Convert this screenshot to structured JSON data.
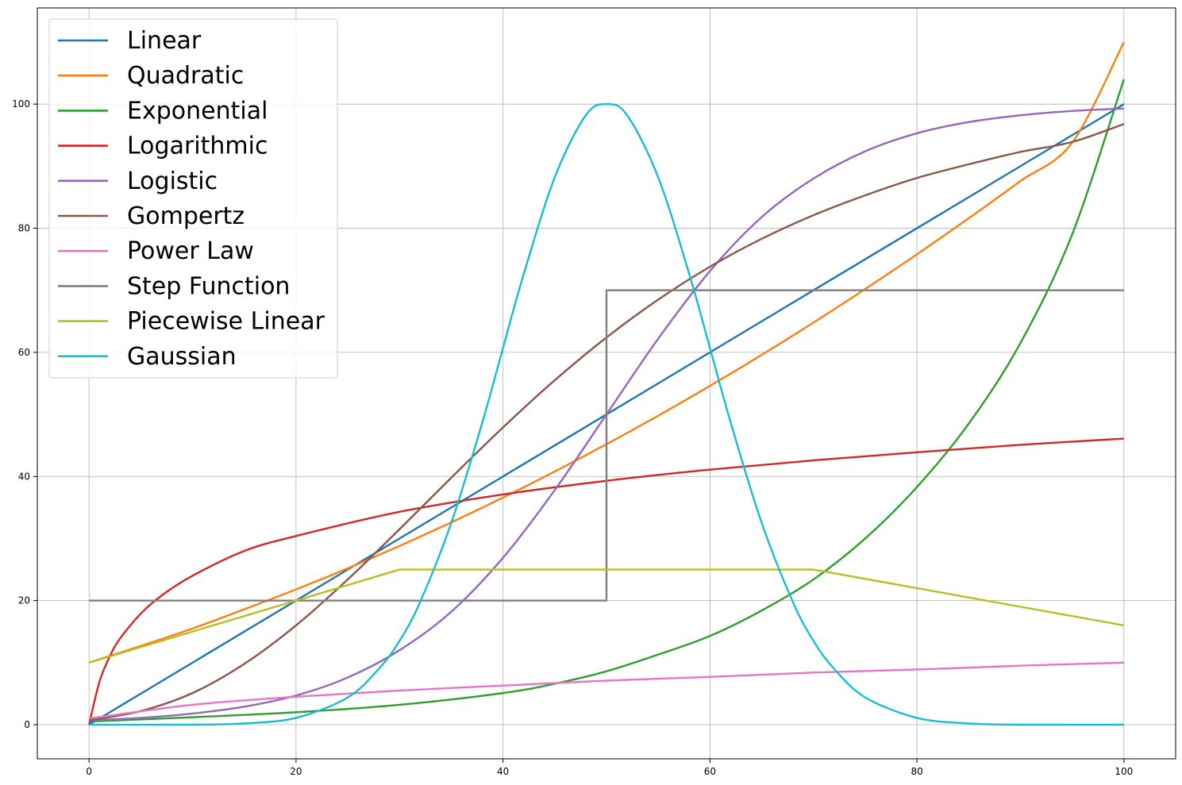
{
  "chart_data": {
    "type": "line",
    "title": "",
    "xlabel": "",
    "ylabel": "",
    "xlim": [
      -5,
      105
    ],
    "ylim": [
      -5.5,
      115.5
    ],
    "xticks": [
      0,
      20,
      40,
      60,
      80,
      100
    ],
    "yticks": [
      0,
      20,
      40,
      60,
      80,
      100
    ],
    "grid": true,
    "legend_position": "top-left",
    "series": [
      {
        "name": "Linear",
        "color": "#1f77b4",
        "points": [
          [
            0,
            0
          ],
          [
            100,
            100
          ]
        ]
      },
      {
        "name": "Quadratic",
        "color": "#ff7f0e",
        "points": [
          [
            0,
            10
          ],
          [
            5,
            12.7
          ],
          [
            10,
            15.5
          ],
          [
            15,
            18.6
          ],
          [
            20,
            21.8
          ],
          [
            25,
            25.2
          ],
          [
            30,
            28.8
          ],
          [
            35,
            32.6
          ],
          [
            40,
            36.6
          ],
          [
            45,
            40.8
          ],
          [
            50,
            45.2
          ],
          [
            55,
            49.8
          ],
          [
            60,
            54.6
          ],
          [
            65,
            59.6
          ],
          [
            70,
            64.8
          ],
          [
            75,
            70.2
          ],
          [
            80,
            75.8
          ],
          [
            85,
            81.6
          ],
          [
            90,
            87.6
          ],
          [
            95,
            93.8
          ],
          [
            100,
            110
          ]
        ]
      },
      {
        "name": "Exponential",
        "color": "#2ca02c",
        "points": [
          [
            0,
            0.5
          ],
          [
            10,
            1.2
          ],
          [
            20,
            2
          ],
          [
            30,
            3.2
          ],
          [
            40,
            5.1
          ],
          [
            45,
            6.6
          ],
          [
            50,
            8.6
          ],
          [
            55,
            11.3
          ],
          [
            60,
            14.3
          ],
          [
            65,
            18.4
          ],
          [
            70,
            23.4
          ],
          [
            75,
            30
          ],
          [
            80,
            38.3
          ],
          [
            85,
            48.5
          ],
          [
            90,
            61.5
          ],
          [
            95,
            79
          ],
          [
            100,
            104
          ]
        ]
      },
      {
        "name": "Logarithmic",
        "color": "#d62728",
        "points": [
          [
            0,
            0
          ],
          [
            1,
            6.9
          ],
          [
            2,
            11
          ],
          [
            3,
            13.9
          ],
          [
            5,
            17.9
          ],
          [
            7,
            20.8
          ],
          [
            10,
            24
          ],
          [
            15,
            28
          ],
          [
            20,
            30.4
          ],
          [
            30,
            34.3
          ],
          [
            40,
            37.1
          ],
          [
            50,
            39.3
          ],
          [
            60,
            41.1
          ],
          [
            70,
            42.6
          ],
          [
            80,
            43.9
          ],
          [
            90,
            45.1
          ],
          [
            100,
            46.1
          ]
        ]
      },
      {
        "name": "Logistic",
        "color": "#9467bd",
        "points": [
          [
            0,
            0.7
          ],
          [
            5,
            1.1
          ],
          [
            10,
            1.8
          ],
          [
            15,
            2.9
          ],
          [
            20,
            4.7
          ],
          [
            25,
            7.6
          ],
          [
            30,
            12
          ],
          [
            35,
            18.2
          ],
          [
            40,
            26.9
          ],
          [
            45,
            37.8
          ],
          [
            50,
            50
          ],
          [
            55,
            62.2
          ],
          [
            60,
            73.1
          ],
          [
            65,
            81.8
          ],
          [
            70,
            88
          ],
          [
            75,
            92.4
          ],
          [
            80,
            95.3
          ],
          [
            85,
            97.1
          ],
          [
            90,
            98.2
          ],
          [
            95,
            98.9
          ],
          [
            100,
            99.3
          ]
        ]
      },
      {
        "name": "Gompertz",
        "color": "#8c564b",
        "points": [
          [
            0,
            0.7
          ],
          [
            5,
            2.2
          ],
          [
            10,
            5.1
          ],
          [
            15,
            9.8
          ],
          [
            20,
            16
          ],
          [
            25,
            23.4
          ],
          [
            30,
            31.5
          ],
          [
            35,
            39.8
          ],
          [
            40,
            47.9
          ],
          [
            45,
            55.5
          ],
          [
            50,
            62.4
          ],
          [
            55,
            68.5
          ],
          [
            60,
            73.8
          ],
          [
            65,
            78.3
          ],
          [
            70,
            82.1
          ],
          [
            75,
            85.3
          ],
          [
            80,
            88.1
          ],
          [
            85,
            90.3
          ],
          [
            90,
            92.3
          ],
          [
            95,
            93.9
          ],
          [
            100,
            96.8
          ]
        ]
      },
      {
        "name": "Power Law",
        "color": "#e377c2",
        "points": [
          [
            0,
            1
          ],
          [
            10,
            3.2
          ],
          [
            20,
            4.5
          ],
          [
            30,
            5.5
          ],
          [
            40,
            6.3
          ],
          [
            50,
            7.1
          ],
          [
            60,
            7.7
          ],
          [
            70,
            8.4
          ],
          [
            80,
            8.9
          ],
          [
            90,
            9.5
          ],
          [
            100,
            10
          ]
        ]
      },
      {
        "name": "Step Function",
        "color": "#7f7f7f",
        "points": [
          [
            0,
            20
          ],
          [
            50,
            20
          ],
          [
            50,
            70
          ],
          [
            100,
            70
          ]
        ]
      },
      {
        "name": "Piecewise Linear",
        "color": "#bcbd22",
        "points": [
          [
            0,
            10
          ],
          [
            30,
            25
          ],
          [
            70,
            25
          ],
          [
            100,
            16
          ]
        ]
      },
      {
        "name": "Gaussian",
        "color": "#17becf",
        "points": [
          [
            0,
            0
          ],
          [
            10,
            0
          ],
          [
            15,
            0.2
          ],
          [
            20,
            1.1
          ],
          [
            25,
            4.4
          ],
          [
            28,
            9
          ],
          [
            30,
            13.5
          ],
          [
            32,
            19.8
          ],
          [
            35,
            32.5
          ],
          [
            38,
            48.7
          ],
          [
            40,
            60.7
          ],
          [
            42,
            72.6
          ],
          [
            45,
            88.2
          ],
          [
            48,
            98.2
          ],
          [
            50,
            100
          ],
          [
            52,
            98.2
          ],
          [
            55,
            88.2
          ],
          [
            58,
            72.6
          ],
          [
            60,
            60.7
          ],
          [
            62,
            48.7
          ],
          [
            65,
            32.5
          ],
          [
            68,
            19.8
          ],
          [
            70,
            13.5
          ],
          [
            72,
            9
          ],
          [
            75,
            4.4
          ],
          [
            80,
            1.1
          ],
          [
            85,
            0.2
          ],
          [
            90,
            0
          ],
          [
            100,
            0
          ]
        ]
      }
    ]
  }
}
